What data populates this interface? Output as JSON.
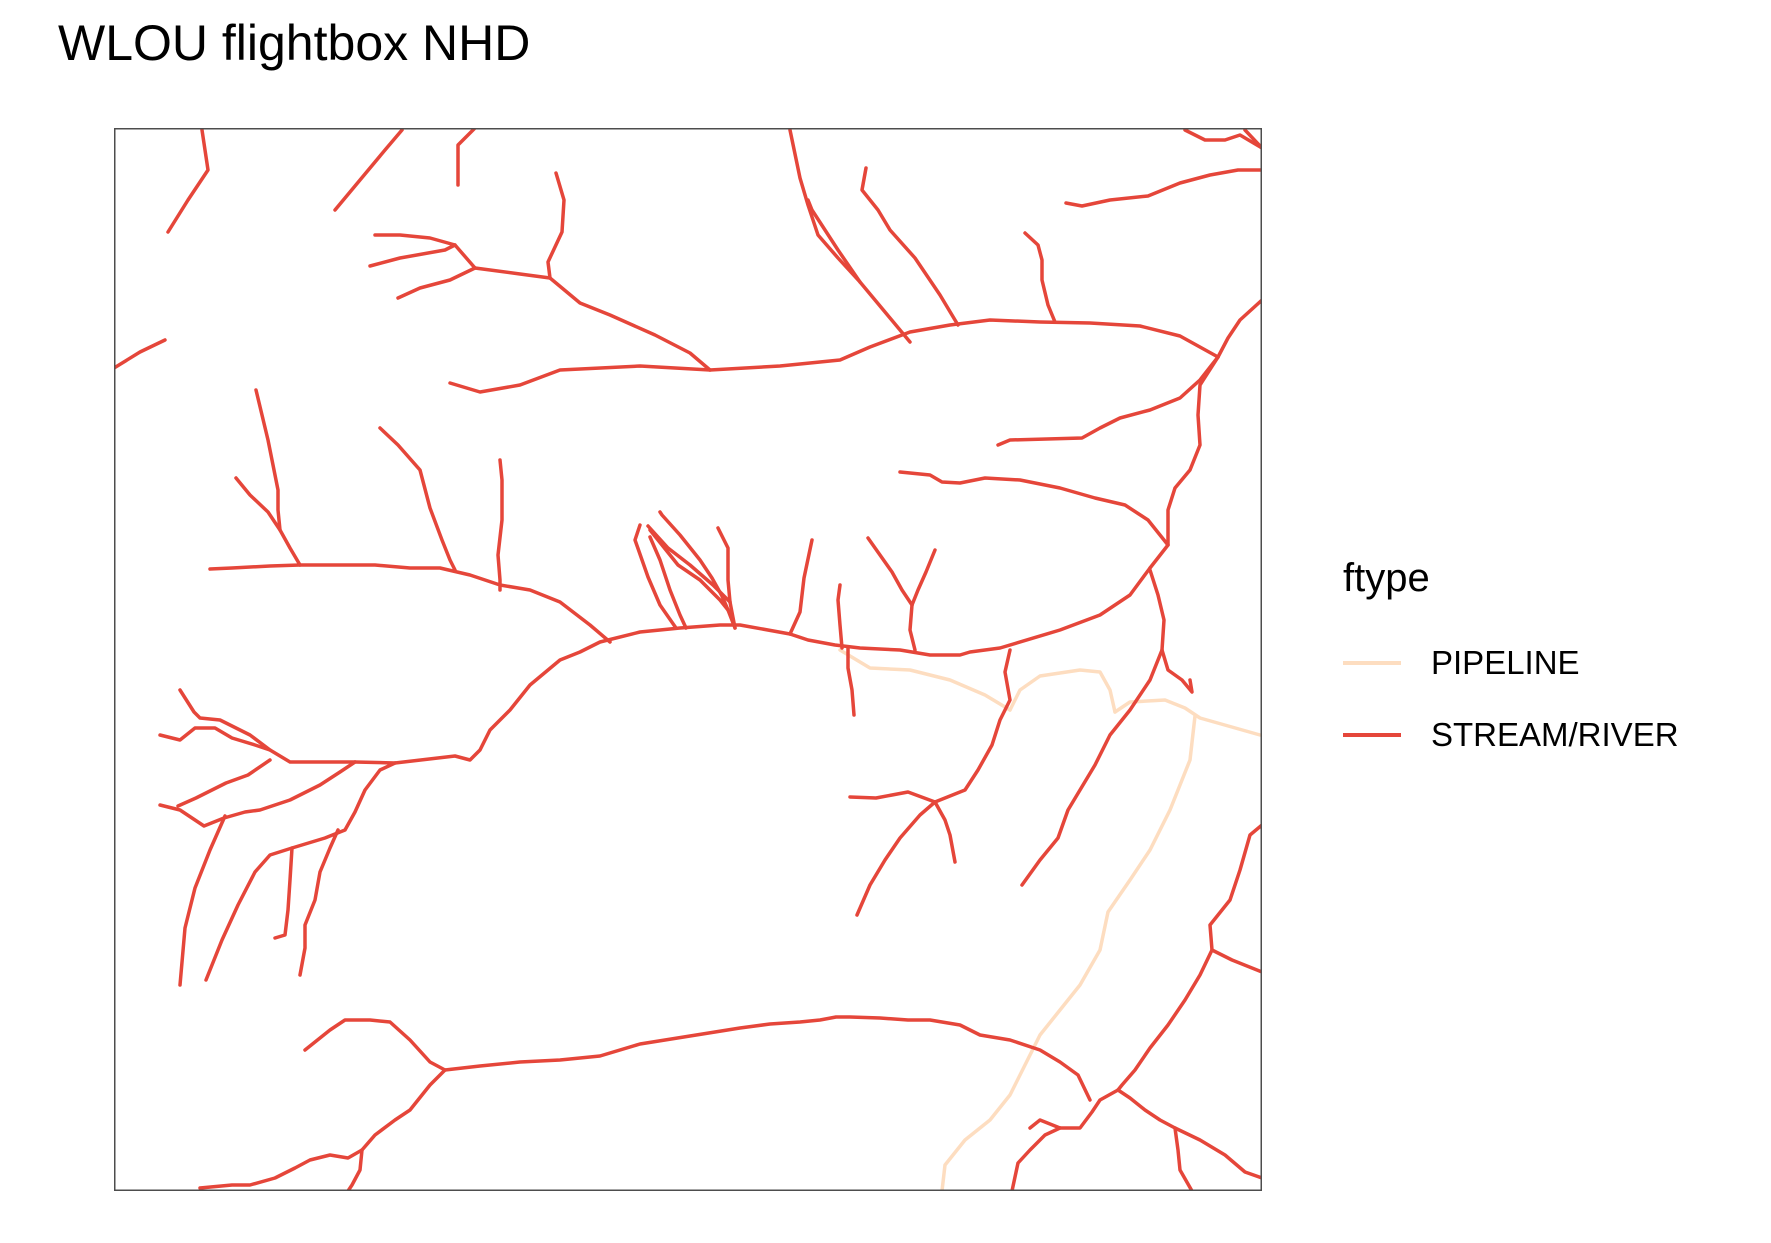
{
  "title": "WLOU flightbox NHD",
  "legend": {
    "title": "ftype",
    "items": [
      {
        "label": "PIPELINE",
        "color": "#FDDDC0"
      },
      {
        "label": "STREAM/RIVER",
        "color": "#E5463A"
      }
    ]
  },
  "colors": {
    "stream": "#E5463A",
    "pipeline": "#FDDDC0",
    "frame": "#4D4D4D"
  }
}
